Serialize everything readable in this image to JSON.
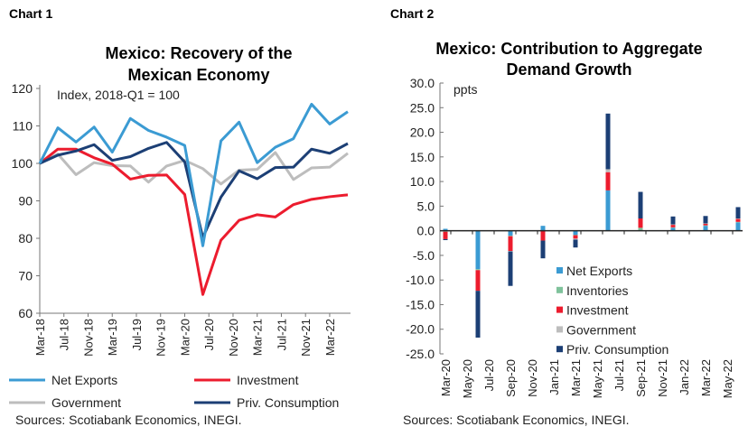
{
  "chart1_label": "Chart 1",
  "chart2_label": "Chart 2",
  "chart_data": [
    {
      "type": "line",
      "title": "Mexico: Recovery of the Mexican Economy",
      "title_lines": [
        "Mexico: Recovery of the",
        "Mexican Economy"
      ],
      "annotation": "Index, 2018-Q1 = 100",
      "source": "Sources: Scotiabank Economics, INEGI.",
      "x": [
        "2018-Q1",
        "2018-Q2",
        "2018-Q3",
        "2018-Q4",
        "2019-Q1",
        "2019-Q2",
        "2019-Q3",
        "2019-Q4",
        "2020-Q1",
        "2020-Q2",
        "2020-Q3",
        "2020-Q4",
        "2021-Q1",
        "2021-Q2",
        "2021-Q3",
        "2021-Q4",
        "2022-Q1",
        "2022-Q2"
      ],
      "x_tick_labels": [
        "Mar-18",
        "Jul-18",
        "Nov-18",
        "Mar-19",
        "Jul-19",
        "Nov-19",
        "Mar-20",
        "Jul-20",
        "Nov-20",
        "Mar-21",
        "Jul-21",
        "Nov-21",
        "Mar-22"
      ],
      "ylim": [
        60,
        120
      ],
      "y_ticks": [
        60,
        70,
        80,
        90,
        100,
        110,
        120
      ],
      "grid": false,
      "legend_placement": "bottom",
      "series": [
        {
          "name": "Net Exports",
          "color": "#3b9bd3",
          "values": [
            100,
            109.5,
            105.7,
            109.7,
            103,
            112,
            108.8,
            107,
            104.8,
            78,
            106,
            111,
            100.2,
            104.3,
            106.6,
            115.8,
            110.5,
            113.8
          ]
        },
        {
          "name": "Investment",
          "color": "#ec1c2e",
          "values": [
            100,
            103.8,
            103.8,
            101.5,
            99.8,
            95.8,
            96.8,
            96.9,
            91.7,
            65,
            79.5,
            84.8,
            86.3,
            85.7,
            89,
            90.4,
            91.1,
            91.6
          ]
        },
        {
          "name": "Government",
          "color": "#bdbdbd",
          "values": [
            100,
            102.5,
            97,
            100.2,
            99.4,
            99.3,
            95,
            99.3,
            100.8,
            98.6,
            94.5,
            98.2,
            98.4,
            102.9,
            95.7,
            98.8,
            99,
            102.7
          ]
        },
        {
          "name": "Priv. Consumption",
          "color": "#1c3f75",
          "values": [
            100,
            102.2,
            103.3,
            105,
            100.8,
            101.8,
            104,
            105.6,
            100.4,
            80.2,
            91,
            98,
            95.9,
            98.9,
            99,
            103.8,
            102.7,
            105.3
          ]
        }
      ]
    },
    {
      "type": "bar",
      "stacked": true,
      "title": "Mexico: Contribution to Aggregate Demand Growth",
      "title_lines": [
        "Mexico: Contribution to Aggregate",
        "Demand Growth"
      ],
      "ylabel": "ppts",
      "source": "Sources: Scotiabank Economics, INEGI.",
      "categories": [
        "Mar-20",
        "Jun-20",
        "Sep-20",
        "Dec-20",
        "Mar-21",
        "Jun-21",
        "Sep-21",
        "Dec-21",
        "Mar-22",
        "Jun-22"
      ],
      "x_tick_labels": [
        "Mar-20",
        "May-20",
        "Jul-20",
        "Sep-20",
        "Nov-20",
        "Jan-21",
        "Mar-21",
        "May-21",
        "Jul-21",
        "Sep-21",
        "Nov-21",
        "Jan-22",
        "Mar-22",
        "May-22"
      ],
      "ylim": [
        -25,
        30
      ],
      "y_ticks": [
        "30.0",
        "25.0",
        "20.0",
        "15.0",
        "10.0",
        "5.0",
        "0.0",
        "-5.0",
        "-10.0",
        "-15.0",
        "-20.0",
        "-25.0"
      ],
      "grid": false,
      "legend_placement": "bottom-right",
      "series": [
        {
          "name": "Net Exports",
          "color": "#3b9bd3",
          "values": [
            0.4,
            -7.8,
            -1.0,
            1.0,
            -0.8,
            8.2,
            0.0,
            0.6,
            1.0,
            1.7
          ]
        },
        {
          "name": "Inventories",
          "color": "#7fc29b",
          "values": [
            -0.2,
            -0.2,
            -0.1,
            0.0,
            -0.1,
            0.0,
            0.6,
            0.1,
            0.1,
            0.1
          ]
        },
        {
          "name": "Investment",
          "color": "#ec1c2e",
          "values": [
            -1.5,
            -4.2,
            -3.0,
            -2.0,
            -0.7,
            3.7,
            1.9,
            0.5,
            0.3,
            0.6
          ]
        },
        {
          "name": "Government",
          "color": "#bdbdbd",
          "values": [
            0.0,
            0.0,
            -0.1,
            0.0,
            -0.2,
            0.6,
            0.0,
            0.1,
            0.1,
            0.1
          ]
        },
        {
          "name": "Priv. Consumption",
          "color": "#1c3f75",
          "values": [
            -0.2,
            -9.5,
            -7.0,
            -3.6,
            -1.6,
            11.3,
            5.4,
            1.6,
            1.5,
            2.3
          ]
        }
      ]
    }
  ]
}
